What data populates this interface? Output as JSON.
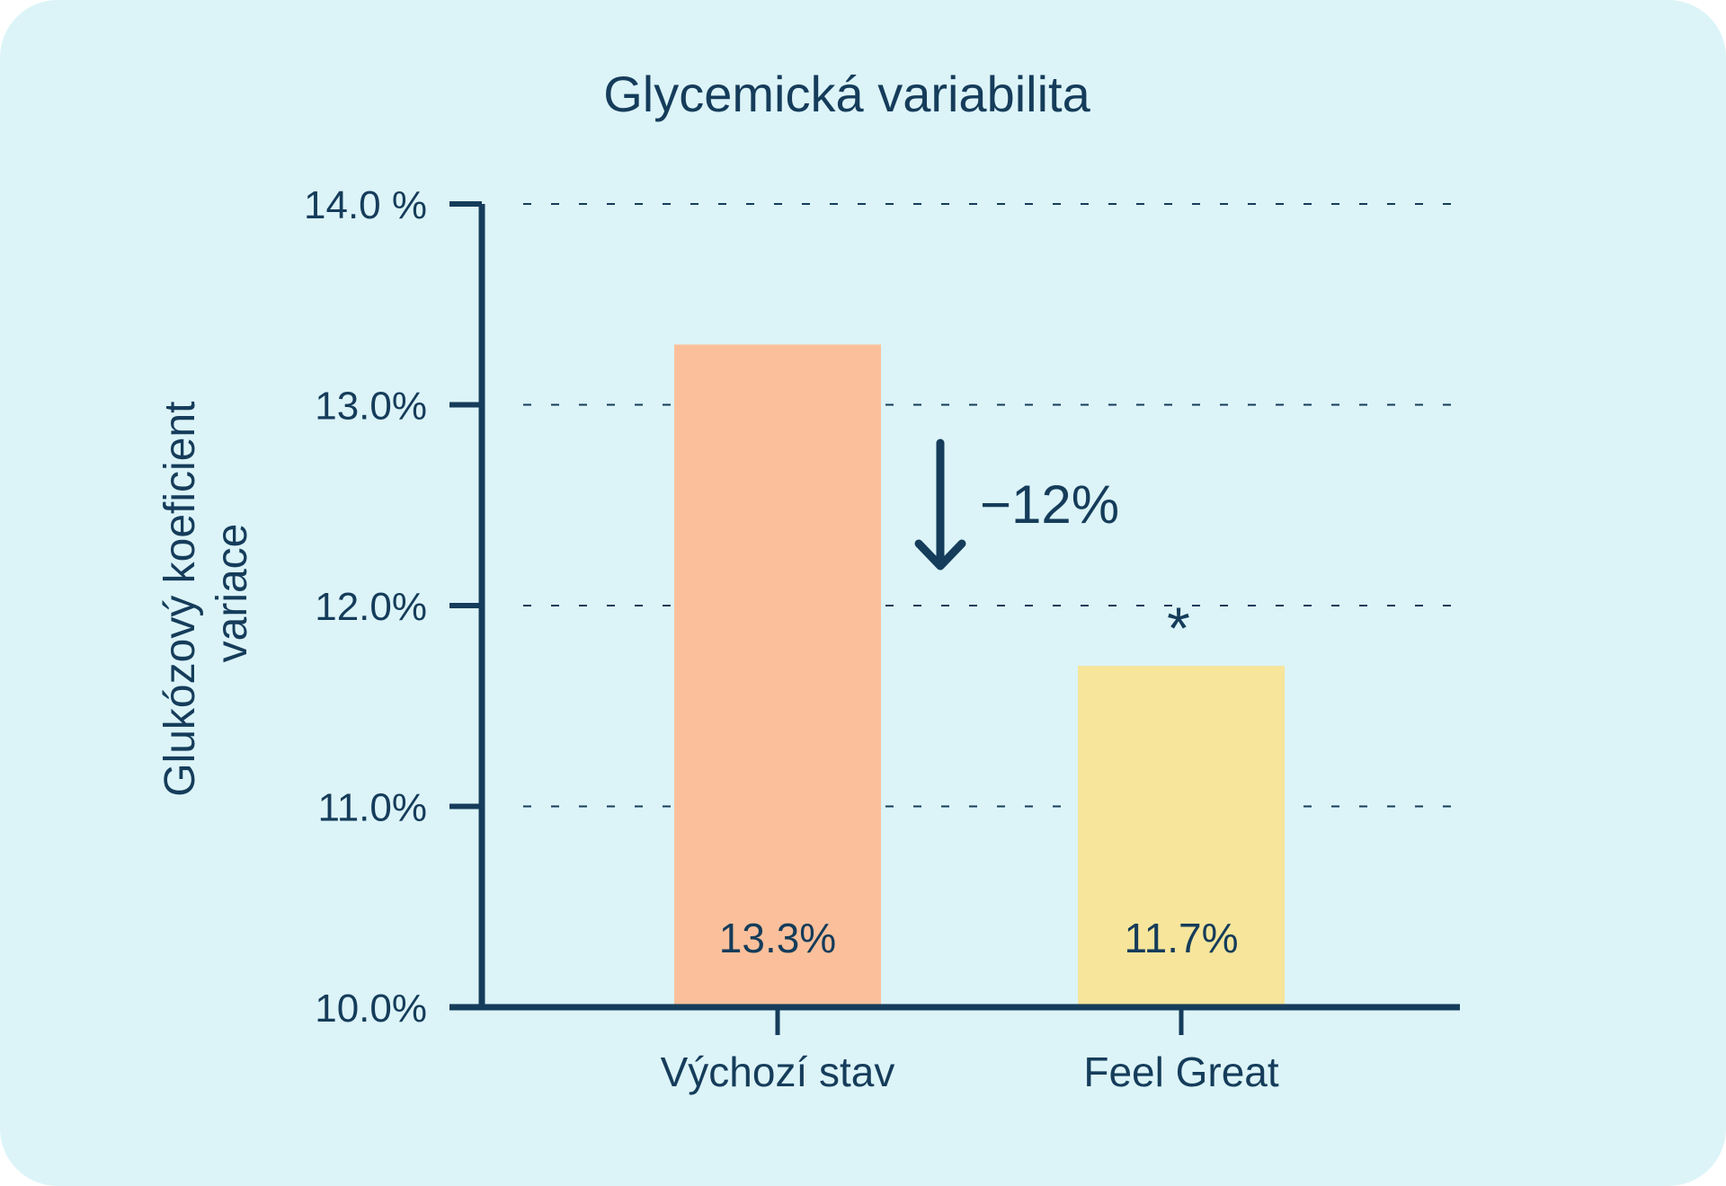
{
  "colors": {
    "background": "#dcf4f8",
    "ink": "#153c5a",
    "bar_baseline": "#fbc09b",
    "bar_feel_great": "#f6e59b"
  },
  "chart_data": {
    "type": "bar",
    "title": "Glycemická variabilita",
    "ylabel": "Glukózový koeficient variace",
    "xlabel": "",
    "categories": [
      "Výchozí stav",
      "Feel Great"
    ],
    "values": [
      13.3,
      11.7
    ],
    "value_labels": [
      "13.3%",
      "11.7%"
    ],
    "ylim": [
      10.0,
      14.0
    ],
    "yticks": [
      10.0,
      11.0,
      12.0,
      13.0,
      14.0
    ],
    "ytick_labels": [
      "10.0%",
      "11.0%",
      "12.0%",
      "13.0%",
      "14.0 %"
    ],
    "grid": "dashed horizontal",
    "legend": "none",
    "annotations": {
      "change": "−12%",
      "significance": "*",
      "arrow_icon": "arrow-down-icon"
    }
  }
}
